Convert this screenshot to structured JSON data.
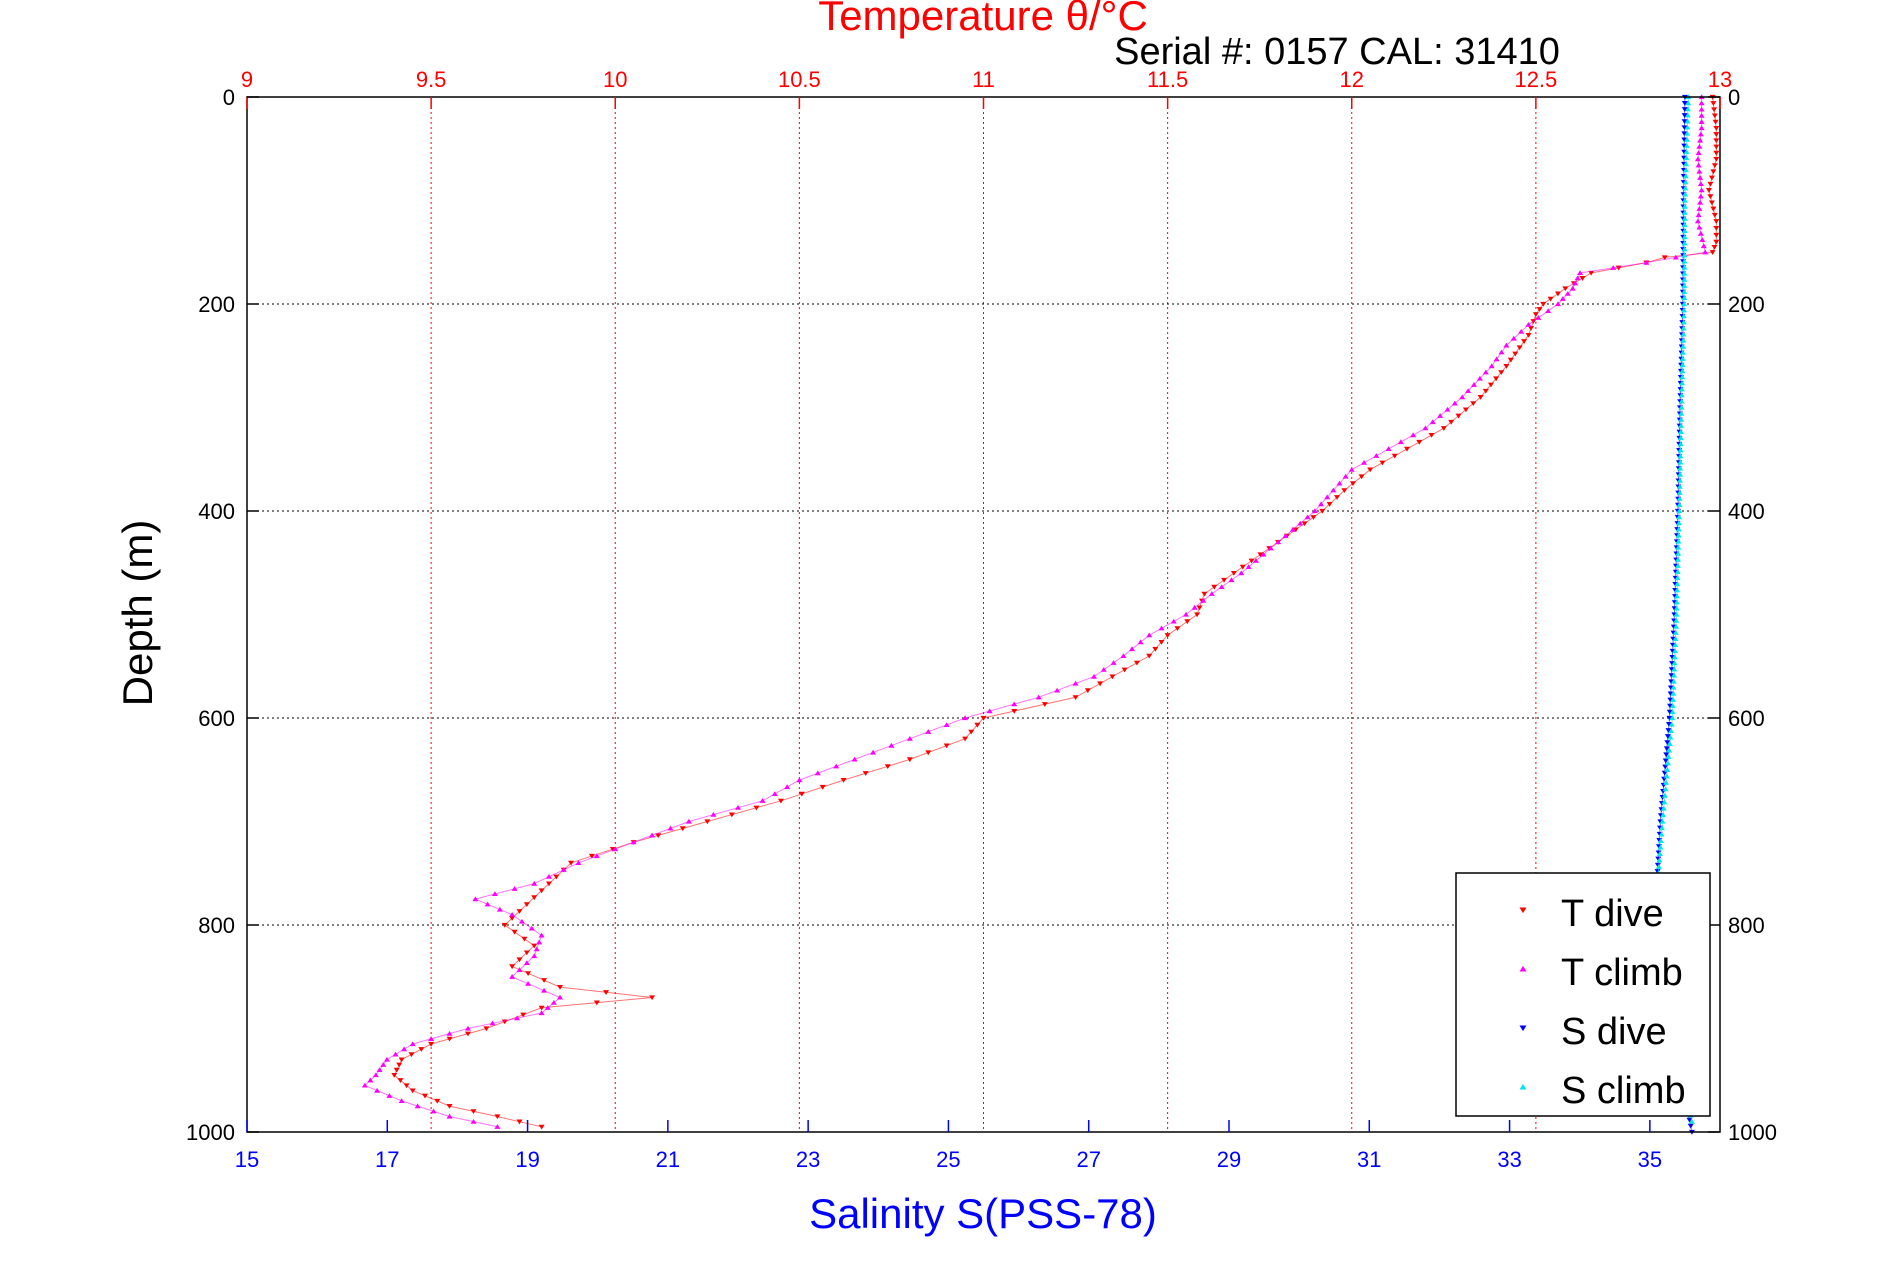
{
  "chart_data": {
    "type": "scatter",
    "title": "Temperature θ/°C",
    "subtitle": "Serial #: 0157  CAL: 31410",
    "ylabel": "Depth (m)",
    "xlabel": "Salinity S(PSS-78)",
    "temperature_axis": {
      "label": "Temperature θ/°C",
      "range": [
        9,
        13
      ],
      "ticks": [
        9,
        9.5,
        10,
        10.5,
        11,
        11.5,
        12,
        12.5,
        13
      ],
      "color": "#ff0000",
      "position": "top"
    },
    "salinity_axis": {
      "label": "Salinity S(PSS-78)",
      "range": [
        15,
        36
      ],
      "ticks": [
        15,
        17,
        19,
        21,
        23,
        25,
        27,
        29,
        31,
        33,
        35
      ],
      "color": "#0000ff",
      "position": "bottom"
    },
    "depth_axis": {
      "label": "Depth (m)",
      "range": [
        0,
        1000
      ],
      "reversed": true,
      "ticks": [
        0,
        200,
        400,
        600,
        800,
        1000
      ]
    },
    "grid": true,
    "legend_position": "bottom-right",
    "series": [
      {
        "name": "T dive",
        "axis": "temperature",
        "color": "#ff0000",
        "marker": "triangle-down",
        "depth": [
          0,
          30,
          60,
          90,
          120,
          140,
          150,
          155,
          160,
          170,
          185,
          200,
          210,
          230,
          260,
          290,
          320,
          340,
          360,
          380,
          400,
          430,
          460,
          480,
          500,
          520,
          540,
          560,
          580,
          600,
          620,
          640,
          660,
          680,
          700,
          720,
          740,
          760,
          780,
          800,
          820,
          840,
          860,
          870,
          880,
          900,
          915,
          930,
          945,
          960,
          975,
          985,
          995
        ],
        "values": [
          12.98,
          12.99,
          12.99,
          12.97,
          12.99,
          12.99,
          12.98,
          12.85,
          12.8,
          12.65,
          12.58,
          12.52,
          12.5,
          12.48,
          12.42,
          12.35,
          12.25,
          12.15,
          12.05,
          11.98,
          11.92,
          11.8,
          11.68,
          11.6,
          11.58,
          11.5,
          11.45,
          11.35,
          11.25,
          11.0,
          10.95,
          10.8,
          10.62,
          10.45,
          10.25,
          10.05,
          9.88,
          9.82,
          9.76,
          9.7,
          9.78,
          9.72,
          9.85,
          10.1,
          9.8,
          9.65,
          9.5,
          9.42,
          9.4,
          9.45,
          9.55,
          9.68,
          9.8
        ]
      },
      {
        "name": "T climb",
        "axis": "temperature",
        "color": "#ff00ff",
        "marker": "triangle-up",
        "depth": [
          0,
          30,
          60,
          90,
          120,
          150,
          160,
          170,
          185,
          200,
          220,
          240,
          260,
          290,
          320,
          340,
          360,
          380,
          400,
          430,
          460,
          480,
          500,
          520,
          540,
          560,
          580,
          600,
          620,
          640,
          660,
          680,
          700,
          720,
          740,
          760,
          775,
          790,
          810,
          830,
          850,
          870,
          885,
          900,
          915,
          930,
          945,
          955,
          970,
          985,
          995
        ],
        "values": [
          12.95,
          12.95,
          12.94,
          12.95,
          12.94,
          12.96,
          12.8,
          12.62,
          12.6,
          12.56,
          12.48,
          12.42,
          12.38,
          12.3,
          12.2,
          12.1,
          12.0,
          11.95,
          11.9,
          11.8,
          11.7,
          11.62,
          11.55,
          11.45,
          11.38,
          11.3,
          11.15,
          10.95,
          10.8,
          10.65,
          10.5,
          10.4,
          10.2,
          10.05,
          9.9,
          9.78,
          9.62,
          9.72,
          9.8,
          9.78,
          9.72,
          9.85,
          9.8,
          9.6,
          9.45,
          9.38,
          9.35,
          9.32,
          9.42,
          9.55,
          9.68
        ]
      },
      {
        "name": "S dive",
        "axis": "salinity",
        "color": "#0000ff",
        "marker": "triangle-down",
        "depth": [
          0,
          100,
          200,
          300,
          400,
          500,
          600,
          700,
          760,
          800,
          900,
          1000
        ],
        "values": [
          35.5,
          35.48,
          35.47,
          35.43,
          35.4,
          35.35,
          35.28,
          35.15,
          35.1,
          35.12,
          35.3,
          35.6
        ]
      },
      {
        "name": "S climb",
        "axis": "salinity",
        "color": "#00e5ee",
        "marker": "triangle-up",
        "depth": [
          0,
          100,
          200,
          300,
          400,
          500,
          600,
          650,
          700,
          750,
          800,
          900,
          990
        ],
        "values": [
          35.55,
          35.5,
          35.49,
          35.45,
          35.42,
          35.38,
          35.32,
          35.25,
          35.18,
          35.12,
          35.15,
          35.32,
          35.6
        ]
      }
    ]
  }
}
